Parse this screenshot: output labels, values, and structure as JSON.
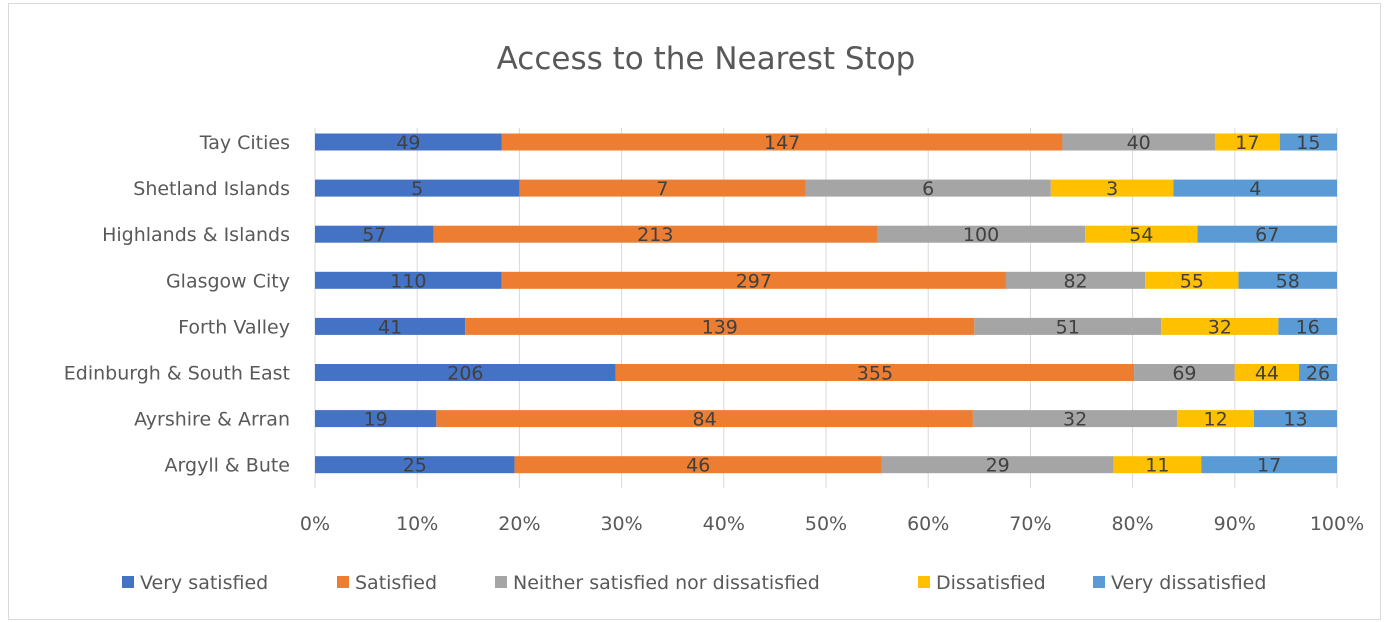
{
  "chart_data": {
    "type": "bar",
    "orientation": "horizontal",
    "stacking": "percent",
    "title": "Access to the Nearest Stop",
    "xlabel": "",
    "ylabel": "",
    "xlim": [
      0,
      100
    ],
    "x_ticks": [
      "0%",
      "10%",
      "20%",
      "30%",
      "40%",
      "50%",
      "60%",
      "70%",
      "80%",
      "90%",
      "100%"
    ],
    "grid": "vertical",
    "legend_position": "bottom",
    "categories": [
      "Tay Cities",
      "Shetland Islands",
      "Highlands & Islands",
      "Glasgow City",
      "Forth Valley",
      "Edinburgh & South East",
      "Ayrshire & Arran",
      "Argyll & Bute"
    ],
    "series": [
      {
        "name": "Very satisfied",
        "color": "#4472C4",
        "values": [
          49,
          5,
          57,
          110,
          41,
          206,
          19,
          25
        ]
      },
      {
        "name": "Satisfied",
        "color": "#ED7D31",
        "values": [
          147,
          7,
          213,
          297,
          139,
          355,
          84,
          46
        ]
      },
      {
        "name": "Neither satisfied nor dissatisfied",
        "color": "#A5A5A5",
        "values": [
          40,
          6,
          100,
          82,
          51,
          69,
          32,
          29
        ]
      },
      {
        "name": "Dissatisfied",
        "color": "#FFC000",
        "values": [
          17,
          3,
          54,
          55,
          32,
          44,
          12,
          11
        ]
      },
      {
        "name": "Very dissatisfied",
        "color": "#5B9BD5",
        "values": [
          15,
          4,
          67,
          58,
          16,
          26,
          13,
          17
        ]
      }
    ]
  }
}
